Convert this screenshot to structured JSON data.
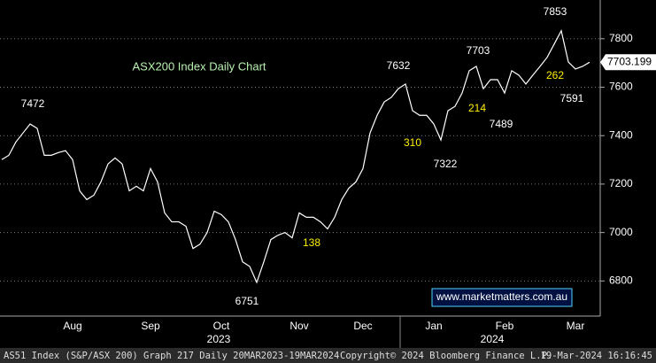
{
  "chart_data": {
    "type": "line",
    "title": "ASX200 Index Daily Chart",
    "categories": [
      null,
      null,
      null,
      null,
      null,
      null,
      null,
      null,
      null,
      null,
      "Aug",
      null,
      null,
      null,
      null,
      null,
      null,
      null,
      null,
      null,
      null,
      "Sep",
      null,
      null,
      null,
      null,
      null,
      null,
      null,
      null,
      null,
      "Oct",
      null,
      null,
      null,
      null,
      null,
      null,
      null,
      null,
      null,
      null,
      "Nov",
      null,
      null,
      null,
      null,
      null,
      null,
      null,
      null,
      "Dec",
      null,
      null,
      null,
      null,
      null,
      null,
      null,
      null,
      null,
      "Jan",
      null,
      null,
      null,
      null,
      null,
      null,
      null,
      null,
      null,
      "Feb",
      null,
      null,
      null,
      null,
      null,
      null,
      null,
      null,
      null,
      "Mar",
      null,
      null
    ],
    "years": [
      "2023",
      "2024"
    ],
    "series": [
      {
        "color": "#ffffff",
        "values": [
          7301,
          7319,
          7374,
          7411,
          7448,
          7430,
          7319,
          7319,
          7330,
          7338,
          7301,
          7172,
          7136,
          7154,
          7209,
          7283,
          7308,
          7283,
          7172,
          7191,
          7172,
          7264,
          7209,
          7081,
          7044,
          7044,
          7026,
          6934,
          6952,
          7000,
          7088,
          7074,
          7044,
          6971,
          6879,
          6860,
          6794,
          6879,
          6971,
          6989,
          7000,
          6978,
          7081,
          7063,
          7063,
          7044,
          7015,
          7063,
          7136,
          7183,
          7209,
          7264,
          7411,
          7484,
          7539,
          7558,
          7594,
          7613,
          7503,
          7484,
          7484,
          7448,
          7382,
          7503,
          7521,
          7576,
          7668,
          7686,
          7594,
          7631,
          7631,
          7576,
          7668,
          7650,
          7613,
          7650,
          7686,
          7723,
          7778,
          7833,
          7704,
          7675,
          7686,
          7703
        ]
      }
    ],
    "last_value": 7703.199,
    "ylim": [
      6655,
      7960
    ],
    "yticks": [
      6800,
      7000,
      7200,
      7400,
      7600,
      7800
    ],
    "grid": true,
    "annotations": [
      {
        "text": "7472",
        "color": "#ffffff"
      },
      {
        "text": "7853",
        "color": "#ffffff"
      },
      {
        "text": "7632",
        "color": "#ffffff"
      },
      {
        "text": "7703",
        "color": "#ffffff"
      },
      {
        "text": "7322",
        "color": "#ffffff"
      },
      {
        "text": "7489",
        "color": "#ffffff"
      },
      {
        "text": "7591",
        "color": "#ffffff"
      },
      {
        "text": "6751",
        "color": "#ffffff"
      },
      {
        "text": "310",
        "color": "#ffee00"
      },
      {
        "text": "214",
        "color": "#ffee00"
      },
      {
        "text": "138",
        "color": "#ffee00"
      },
      {
        "text": "262",
        "color": "#ffee00"
      }
    ],
    "watermark": "www.marketmatters.com.au",
    "footer": [
      "AS51 Index (S&P/ASX 200) Graph 217  Daily 20MAR2023-19MAR2024",
      "Copyright© 2024 Bloomberg Finance L.P.",
      "19-Mar-2024 16:16:45"
    ]
  }
}
